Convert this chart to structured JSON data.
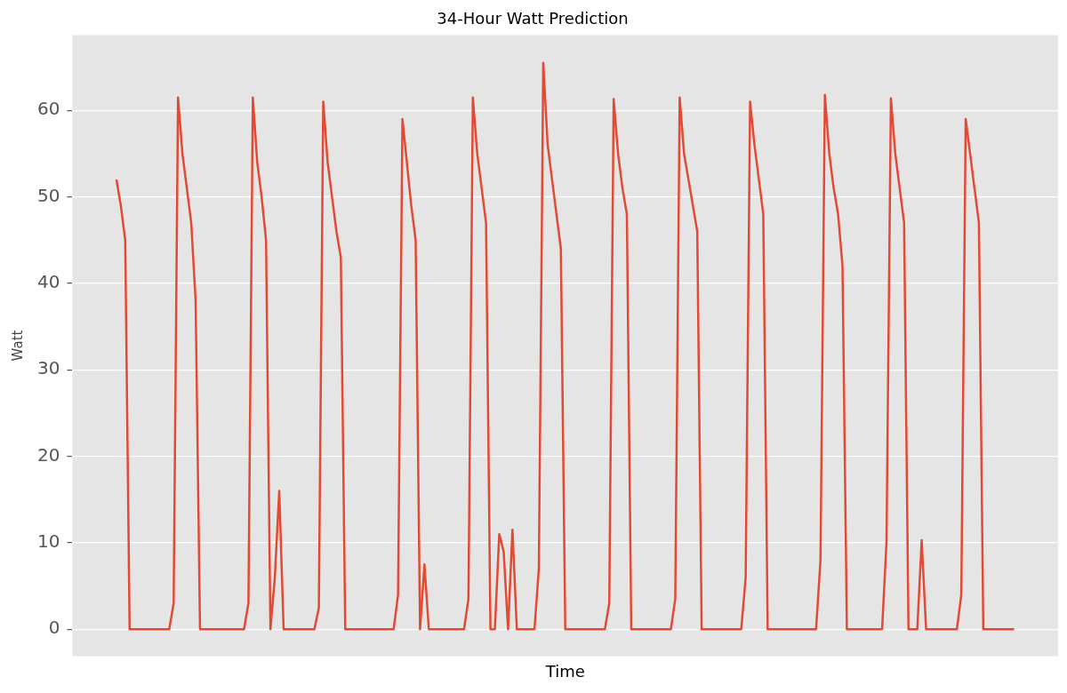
{
  "chart_data": {
    "type": "line",
    "title": "34-Hour Watt Prediction",
    "xlabel": "Time",
    "ylabel": "Watt",
    "categories": [
      null,
      null,
      null,
      null,
      null,
      null,
      null,
      null,
      null,
      null,
      null,
      null,
      null,
      null,
      null,
      null,
      null,
      null,
      null,
      null,
      null,
      null,
      null,
      null,
      null,
      null,
      null,
      null,
      null,
      null,
      null,
      null,
      null,
      null,
      null,
      null,
      null,
      null,
      null,
      null,
      null,
      null,
      null,
      null,
      null,
      null,
      null,
      null,
      null,
      null,
      null,
      null,
      null,
      null,
      null,
      null,
      null,
      null,
      null,
      null,
      null,
      null,
      null,
      null,
      null,
      null,
      null,
      null,
      null,
      null,
      null,
      null,
      null,
      null,
      null,
      null,
      null,
      null,
      null,
      null,
      null,
      null,
      null,
      null,
      null,
      null,
      null,
      null,
      null,
      null,
      null,
      null,
      null,
      null,
      null,
      null,
      null,
      null,
      null,
      null,
      null,
      null,
      null,
      null,
      null,
      null,
      null,
      null,
      null,
      null,
      null,
      null,
      null,
      null,
      null,
      null,
      null,
      null,
      null,
      null,
      null,
      null,
      null,
      null,
      null,
      null,
      null,
      null,
      null,
      null,
      null,
      null,
      null,
      null,
      null,
      null,
      null,
      null,
      null,
      null,
      null,
      null,
      null,
      null,
      null,
      null,
      null,
      null,
      null,
      null,
      null,
      null,
      null,
      null,
      null,
      null,
      null,
      null,
      null,
      null,
      null,
      null,
      null,
      null,
      null,
      null,
      null,
      null,
      null,
      null,
      null,
      null,
      null,
      null,
      null,
      null,
      null,
      null,
      null,
      null,
      null,
      null,
      null,
      null,
      null,
      null,
      null,
      null,
      null,
      null,
      null,
      null,
      null,
      null,
      null,
      null,
      null,
      null,
      null,
      null,
      null,
      null,
      null,
      null,
      null
    ],
    "series": [
      {
        "color": "#e24a33",
        "values": [
          52,
          49,
          45,
          0,
          0,
          0,
          0,
          0,
          0,
          0,
          0,
          0,
          0,
          3,
          61.5,
          55,
          51,
          47,
          38,
          0,
          0,
          0,
          0,
          0,
          0,
          0,
          0,
          0,
          0,
          0,
          3,
          61.5,
          54,
          50,
          45,
          0,
          6,
          16,
          0,
          0,
          0,
          0,
          0,
          0,
          0,
          0,
          2.5,
          61,
          54,
          50,
          46,
          43,
          0,
          0,
          0,
          0,
          0,
          0,
          0,
          0,
          0,
          0,
          0,
          0,
          4,
          59,
          54,
          49,
          45,
          0,
          7.5,
          0,
          0,
          0,
          0,
          0,
          0,
          0,
          0,
          0,
          3.5,
          61.5,
          55,
          51,
          47,
          0,
          0,
          11,
          9,
          0,
          11.5,
          0,
          0,
          0,
          0,
          0,
          7,
          65.5,
          56,
          52,
          48,
          44,
          0,
          0,
          0,
          0,
          0,
          0,
          0,
          0,
          0,
          0,
          3,
          61.3,
          55,
          51,
          48,
          0,
          0,
          0,
          0,
          0,
          0,
          0,
          0,
          0,
          0,
          3.5,
          61.5,
          55,
          52,
          49,
          46,
          0,
          0,
          0,
          0,
          0,
          0,
          0,
          0,
          0,
          0,
          6,
          61,
          56,
          52,
          48,
          0,
          0,
          0,
          0,
          0,
          0,
          0,
          0,
          0,
          0,
          0,
          0,
          8,
          61.8,
          55,
          51,
          48,
          42,
          0,
          0,
          0,
          0,
          0,
          0,
          0,
          0,
          0,
          10,
          61.4,
          55,
          51,
          47,
          0,
          0,
          0,
          10.3,
          0,
          0,
          0,
          0,
          0,
          0,
          0,
          0,
          4,
          59,
          55,
          51,
          47,
          0,
          0,
          0,
          0,
          0,
          0,
          0,
          0
        ]
      }
    ],
    "ylim": [
      -3.1,
      68.7
    ],
    "yticks": [
      0,
      10,
      20,
      30,
      40,
      50,
      60
    ],
    "grid": "y",
    "marker": "none",
    "line_style": "solid",
    "tick_labels": "y"
  }
}
